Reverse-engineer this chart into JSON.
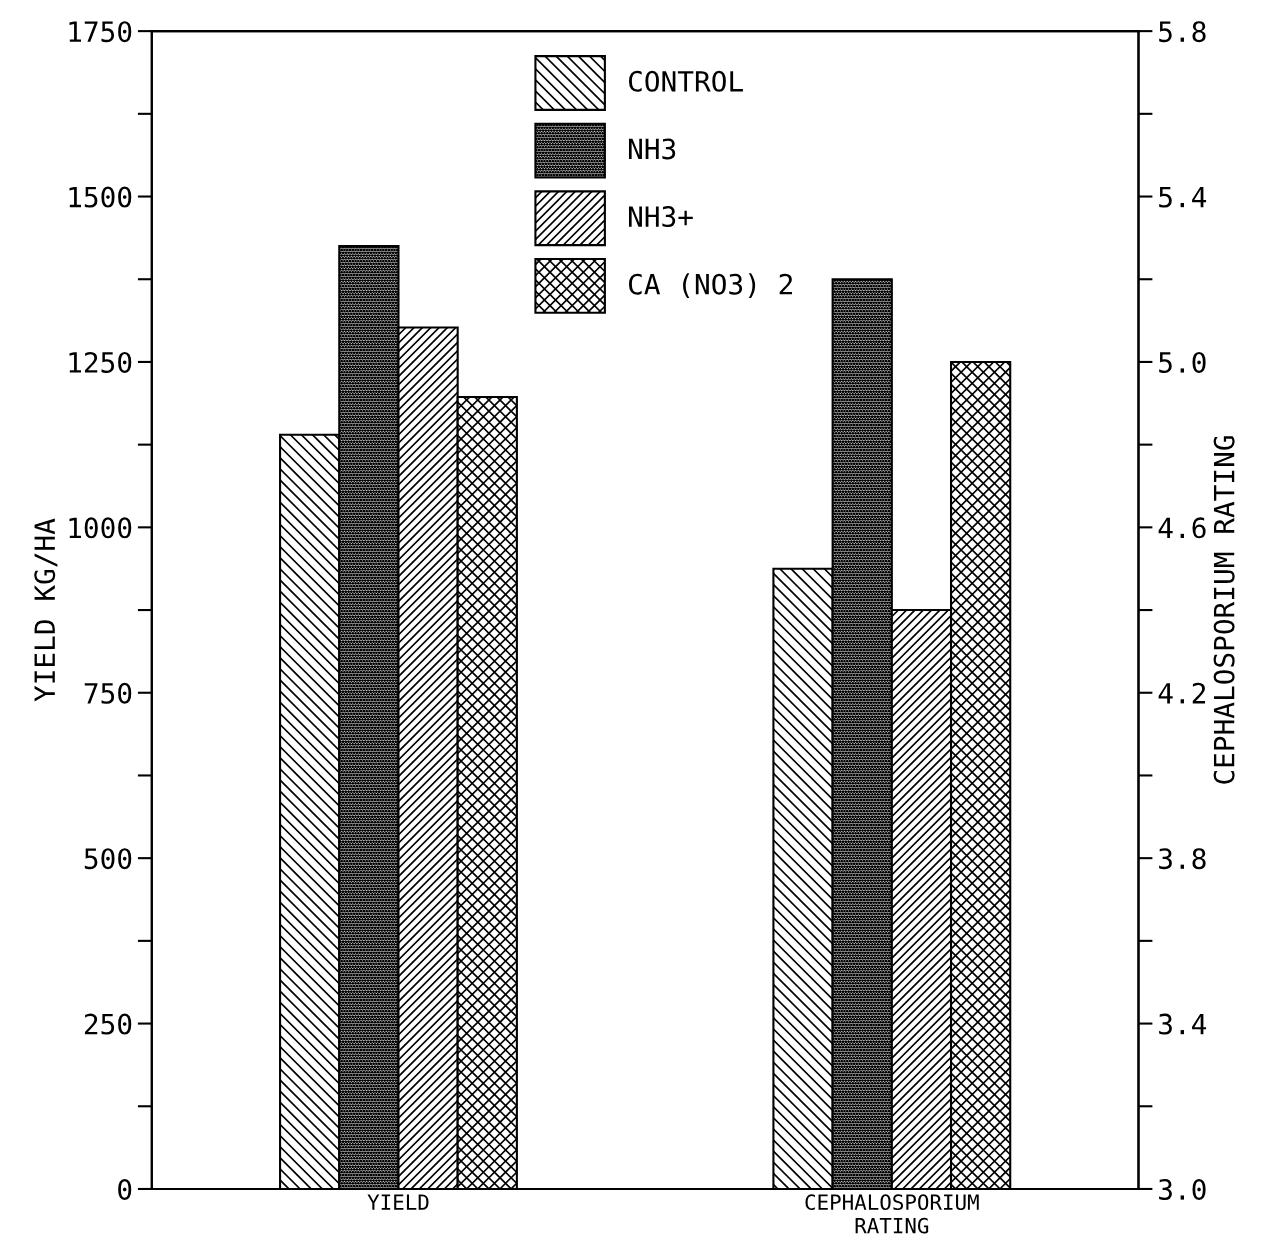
{
  "chart_data": {
    "type": "bar",
    "categories": [
      "YIELD",
      "CEPHALOSPORIUM\nRATING"
    ],
    "ylabel": "YIELD KG/HA",
    "y2label": "CEPHALOSPORIUM RATING",
    "series": [
      {
        "name": "CONTROL",
        "color": "#000000",
        "values": [
          1140,
          null
        ]
      },
      {
        "name": "NH3",
        "color": "#000000",
        "values": [
          1425,
          null
        ]
      },
      {
        "name": "NH3+",
        "color": "#000000",
        "values": [
          1302,
          null
        ]
      },
      {
        "name": "CA (NO3) 2",
        "color": "#000000",
        "values": [
          1197,
          null
        ]
      },
      {
        "color": "#000000",
        "values": [
          null,
          4.5
        ],
        "axis": "y2"
      },
      {
        "color": "#000000",
        "values": [
          null,
          5.2
        ],
        "axis": "y2"
      },
      {
        "color": "#000000",
        "values": [
          null,
          4.4
        ],
        "axis": "y2"
      },
      {
        "color": "#000000",
        "values": [
          null,
          5.0
        ],
        "axis": "y2"
      }
    ],
    "ylim": [
      0,
      1750
    ],
    "yticks": [
      0,
      {
        "value": 125,
        "label": null
      },
      250,
      {
        "value": 375,
        "label": null
      },
      500,
      {
        "value": 625,
        "label": null
      },
      750,
      {
        "value": 875,
        "label": null
      },
      1000,
      {
        "value": 1125,
        "label": null
      },
      1250,
      {
        "value": 1375,
        "label": null
      },
      1500,
      {
        "value": 1625,
        "label": null
      },
      1750
    ],
    "y2lim": [
      3.0,
      5.8
    ],
    "y2ticks": [
      {
        "value": 3.0,
        "label": "3.0"
      },
      {
        "value": 3.2,
        "label": null
      },
      3.4,
      {
        "value": 3.6,
        "label": null
      },
      3.8,
      {
        "value": 4.0,
        "label": null
      },
      4.2,
      {
        "value": 4.4,
        "label": null
      },
      4.6,
      {
        "value": 4.8,
        "label": null
      },
      {
        "value": 5.0,
        "label": "5.0"
      },
      {
        "value": 5.2,
        "label": null
      },
      5.4,
      {
        "value": 5.6,
        "label": null
      },
      5.8
    ],
    "grid": false,
    "legend": "top"
  }
}
